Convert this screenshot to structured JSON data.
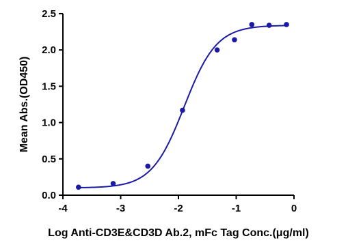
{
  "chart_data": {
    "type": "scatter",
    "title": "",
    "xlabel": "Log  Anti-CD3E&CD3D Ab.2, mFc Tag Conc.(μg/ml)",
    "ylabel": "Mean Abs.(OD450)",
    "xlim": [
      -4,
      0
    ],
    "ylim": [
      0,
      2.5
    ],
    "x_ticks": [
      -4,
      -3,
      -2,
      -1,
      0
    ],
    "x_tick_labels": [
      "-4",
      "-3",
      "-2",
      "-1",
      "0"
    ],
    "y_ticks": [
      0,
      0.5,
      1.0,
      1.5,
      2.0,
      2.5
    ],
    "y_tick_labels": [
      "0.0",
      "0.5",
      "1.0",
      "1.5",
      "2.0",
      "2.5"
    ],
    "grid": false,
    "legend": "none",
    "series": [
      {
        "color": "#1a1aa6",
        "points": [
          {
            "x": -3.73,
            "y": 0.11
          },
          {
            "x": -3.13,
            "y": 0.16
          },
          {
            "x": -2.53,
            "y": 0.4
          },
          {
            "x": -1.93,
            "y": 1.17
          },
          {
            "x": -1.33,
            "y": 2.0
          },
          {
            "x": -1.03,
            "y": 2.14
          },
          {
            "x": -0.73,
            "y": 2.35
          },
          {
            "x": -0.43,
            "y": 2.34
          },
          {
            "x": -0.13,
            "y": 2.35
          }
        ],
        "fit": {
          "model": "4PL",
          "bottom": 0.1,
          "top": 2.34,
          "logEC50": -1.9,
          "hill": 1.55
        }
      }
    ]
  }
}
